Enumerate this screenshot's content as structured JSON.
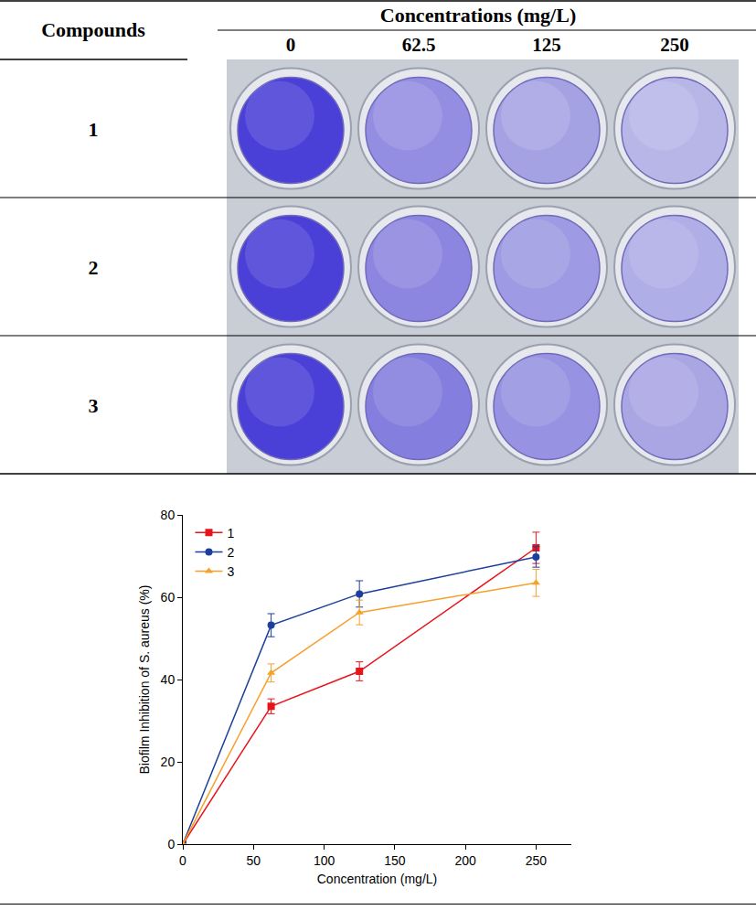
{
  "table": {
    "header": {
      "row_title": "Compounds",
      "column_group": "Concentrations (mg/L)",
      "columns": [
        "0",
        "62.5",
        "125",
        "250"
      ]
    },
    "rows": [
      "1",
      "2",
      "3"
    ]
  },
  "chart_data": {
    "type": "line",
    "x_label": "Concentration (mg/L)",
    "y_label": "Biofilm Inhibition of S. aureus (%)",
    "x": [
      0,
      62.5,
      125,
      250
    ],
    "series": [
      {
        "name": "1",
        "color": "#e8141c",
        "marker": "square",
        "values": [
          0,
          33.5,
          42,
          72
        ],
        "errors": [
          0,
          1.8,
          2.3,
          3.8
        ]
      },
      {
        "name": "2",
        "color": "#1c3f9c",
        "marker": "circle",
        "values": [
          0,
          53.2,
          60.8,
          69.8
        ],
        "errors": [
          0,
          2.8,
          3.2,
          2.5
        ]
      },
      {
        "name": "3",
        "color": "#f5a12b",
        "marker": "triangle-up",
        "values": [
          0,
          41.6,
          56.3,
          63.5
        ],
        "errors": [
          0,
          2.2,
          3.0,
          3.3
        ]
      }
    ],
    "xlim": [
      0,
      275
    ],
    "xticks": [
      0,
      50,
      100,
      150,
      200,
      250
    ],
    "ylim": [
      0,
      80
    ],
    "yticks": [
      0,
      20,
      40,
      60,
      80
    ],
    "grid": false,
    "legend": "upper left"
  }
}
